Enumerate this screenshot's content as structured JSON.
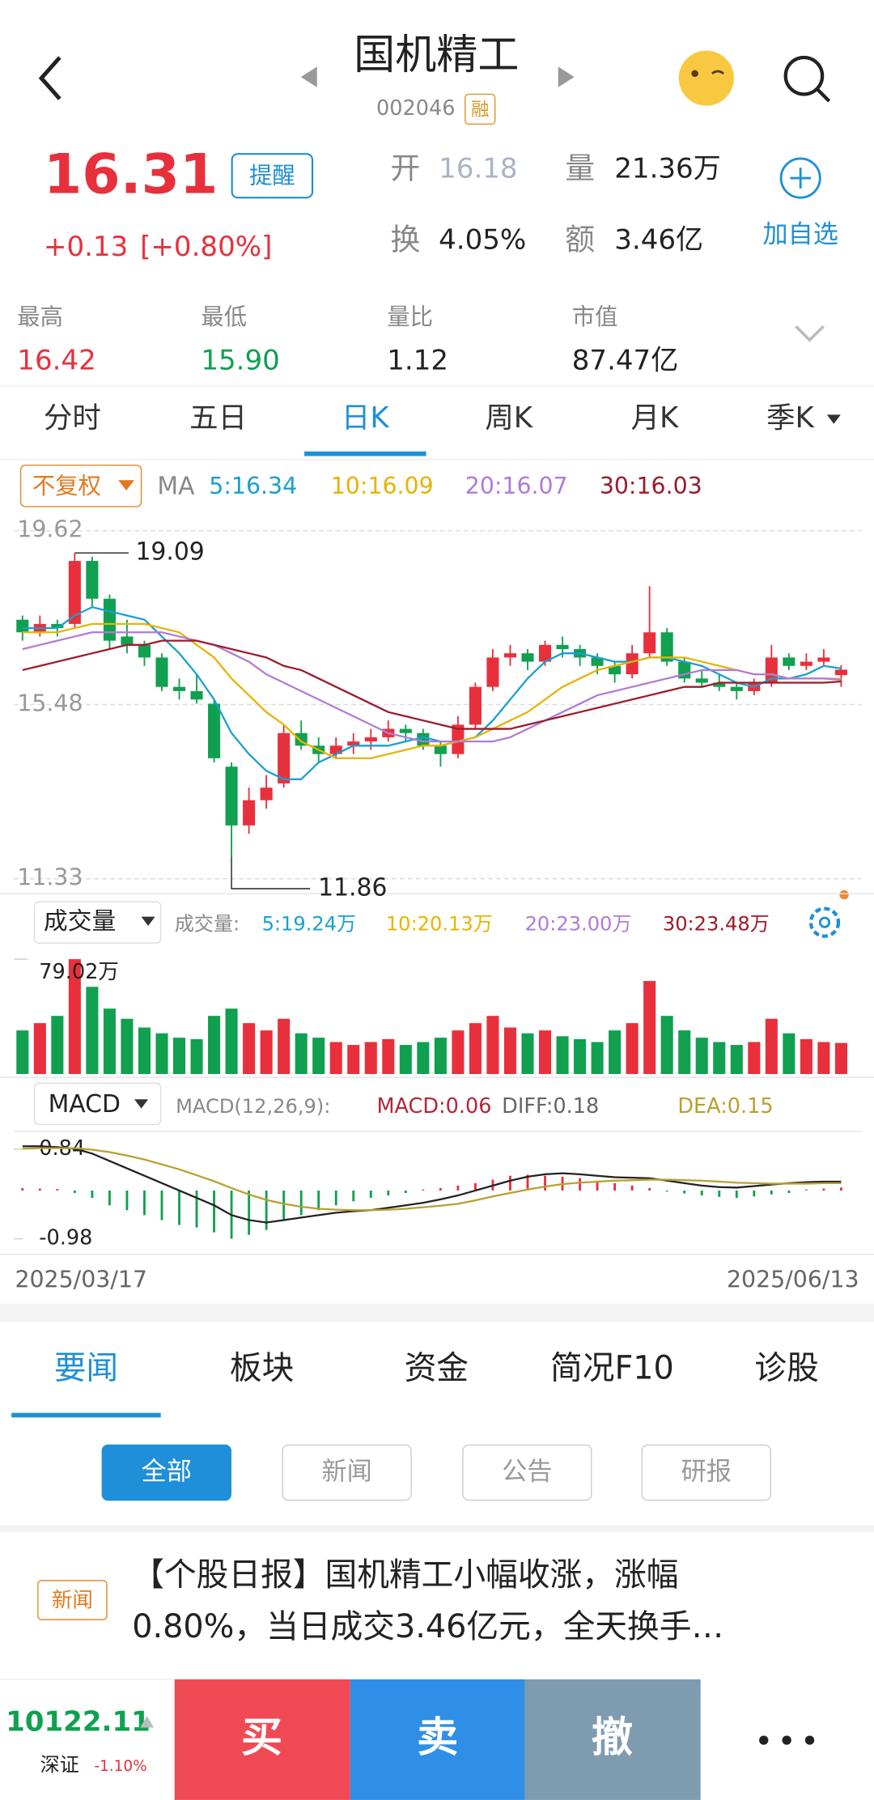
{
  "header": {
    "title": "国机精工",
    "code": "002046",
    "badge": "融"
  },
  "quote": {
    "price": "16.31",
    "change": "+0.13",
    "change_pct": "[+0.80%]",
    "alert": "提醒",
    "stats": [
      {
        "label": "开",
        "value": "16.18"
      },
      {
        "label": "量",
        "value": "21.36万"
      },
      {
        "label": "换",
        "value": "4.05%"
      },
      {
        "label": "额",
        "value": "3.46亿"
      }
    ],
    "watch": "加自选"
  },
  "summary": [
    {
      "label": "最高",
      "value": "16.42"
    },
    {
      "label": "最低",
      "value": "15.90"
    },
    {
      "label": "量比",
      "value": "1.12"
    },
    {
      "label": "市值",
      "value": "87.47亿"
    }
  ],
  "period_tabs": [
    "分时",
    "五日",
    "日K",
    "周K",
    "月K",
    "季K"
  ],
  "active_tab": 2,
  "chart": {
    "type": "candlestick",
    "adjust": "不复权",
    "ma_label": "MA",
    "up_color": "#e8303c",
    "down_color": "#10a050",
    "ylim": [
      11.33,
      19.62
    ],
    "yticks": [
      19.62,
      15.48,
      11.33
    ],
    "x_labels": [
      "2025/03/17",
      "2025/06/13"
    ],
    "candles": [
      [
        17.5,
        17.6,
        17.0,
        17.2
      ],
      [
        17.2,
        17.6,
        17.1,
        17.4
      ],
      [
        17.4,
        17.5,
        17.1,
        17.3
      ],
      [
        17.4,
        19.09,
        17.3,
        18.9
      ],
      [
        18.9,
        19.0,
        17.8,
        18.0
      ],
      [
        18.0,
        18.1,
        16.8,
        17.0
      ],
      [
        17.1,
        17.5,
        16.7,
        16.9
      ],
      [
        16.9,
        17.0,
        16.4,
        16.6
      ],
      [
        16.6,
        16.7,
        15.8,
        15.9
      ],
      [
        15.9,
        16.1,
        15.6,
        15.8
      ],
      [
        15.8,
        16.2,
        15.5,
        15.6
      ],
      [
        15.5,
        15.6,
        14.1,
        14.2
      ],
      [
        14.0,
        14.1,
        11.86,
        12.6
      ],
      [
        12.6,
        13.5,
        12.4,
        13.2
      ],
      [
        13.2,
        13.8,
        13.0,
        13.5
      ],
      [
        13.6,
        15.0,
        13.5,
        14.8
      ],
      [
        14.8,
        15.1,
        14.4,
        14.5
      ],
      [
        14.5,
        14.7,
        14.1,
        14.3
      ],
      [
        14.3,
        14.7,
        14.2,
        14.5
      ],
      [
        14.5,
        14.8,
        14.3,
        14.6
      ],
      [
        14.6,
        14.9,
        14.4,
        14.7
      ],
      [
        14.7,
        15.1,
        14.6,
        14.9
      ],
      [
        14.9,
        15.0,
        14.6,
        14.8
      ],
      [
        14.8,
        14.9,
        14.4,
        14.5
      ],
      [
        14.5,
        14.6,
        14.0,
        14.3
      ],
      [
        14.3,
        15.2,
        14.2,
        15.0
      ],
      [
        15.0,
        16.0,
        14.9,
        15.9
      ],
      [
        15.9,
        16.8,
        15.8,
        16.6
      ],
      [
        16.6,
        16.9,
        16.4,
        16.7
      ],
      [
        16.7,
        16.8,
        16.3,
        16.5
      ],
      [
        16.5,
        17.0,
        16.4,
        16.9
      ],
      [
        16.9,
        17.1,
        16.6,
        16.8
      ],
      [
        16.8,
        16.9,
        16.4,
        16.6
      ],
      [
        16.6,
        16.7,
        16.2,
        16.4
      ],
      [
        16.4,
        16.5,
        16.0,
        16.2
      ],
      [
        16.2,
        16.9,
        16.1,
        16.7
      ],
      [
        16.7,
        18.3,
        16.6,
        17.2
      ],
      [
        17.2,
        17.3,
        16.4,
        16.5
      ],
      [
        16.5,
        16.6,
        16.0,
        16.1
      ],
      [
        16.1,
        16.3,
        15.9,
        16.0
      ],
      [
        16.0,
        16.2,
        15.8,
        15.9
      ],
      [
        15.9,
        16.0,
        15.6,
        15.8
      ],
      [
        15.8,
        16.1,
        15.7,
        16.0
      ],
      [
        16.0,
        16.9,
        15.9,
        16.6
      ],
      [
        16.6,
        16.7,
        16.3,
        16.4
      ],
      [
        16.4,
        16.7,
        16.3,
        16.5
      ],
      [
        16.5,
        16.8,
        16.4,
        16.6
      ],
      [
        16.18,
        16.42,
        15.9,
        16.31
      ]
    ],
    "ma": [
      {
        "name": "5:16.34",
        "color": "#1a9fd0",
        "values": [
          17.3,
          17.3,
          17.3,
          17.6,
          17.8,
          17.7,
          17.6,
          17.5,
          17.1,
          16.7,
          16.2,
          15.6,
          14.8,
          14.3,
          13.9,
          13.7,
          13.7,
          14.1,
          14.3,
          14.5,
          14.5,
          14.5,
          14.6,
          14.7,
          14.6,
          14.6,
          14.7,
          15.1,
          15.6,
          16.1,
          16.5,
          16.7,
          16.7,
          16.6,
          16.5,
          16.5,
          16.6,
          16.6,
          16.5,
          16.4,
          16.2,
          16.0,
          15.9,
          16.1,
          16.1,
          16.2,
          16.4,
          16.34
        ]
      },
      {
        "name": "10:16.09",
        "color": "#e6b400",
        "values": [
          17.2,
          17.2,
          17.2,
          17.3,
          17.4,
          17.4,
          17.4,
          17.4,
          17.3,
          17.2,
          16.9,
          16.6,
          16.1,
          15.7,
          15.3,
          15.0,
          14.6,
          14.4,
          14.2,
          14.2,
          14.2,
          14.3,
          14.4,
          14.5,
          14.5,
          14.6,
          14.7,
          14.9,
          15.1,
          15.3,
          15.6,
          15.9,
          16.1,
          16.3,
          16.4,
          16.5,
          16.6,
          16.6,
          16.6,
          16.5,
          16.4,
          16.3,
          16.2,
          16.2,
          16.1,
          16.1,
          16.1,
          16.09
        ]
      },
      {
        "name": "20:16.07",
        "color": "#b07cd6",
        "values": [
          16.8,
          16.9,
          17.0,
          17.1,
          17.2,
          17.2,
          17.2,
          17.2,
          17.2,
          17.1,
          17.0,
          16.9,
          16.7,
          16.5,
          16.2,
          16.0,
          15.8,
          15.6,
          15.4,
          15.2,
          15.0,
          14.8,
          14.7,
          14.6,
          14.6,
          14.6,
          14.6,
          14.6,
          14.7,
          14.9,
          15.1,
          15.3,
          15.5,
          15.7,
          15.8,
          15.9,
          16.0,
          16.1,
          16.2,
          16.3,
          16.3,
          16.3,
          16.2,
          16.2,
          16.1,
          16.1,
          16.1,
          16.07
        ]
      },
      {
        "name": "30:16.03",
        "color": "#9b1c2c",
        "values": [
          16.3,
          16.4,
          16.5,
          16.6,
          16.7,
          16.8,
          16.9,
          16.9,
          17.0,
          17.0,
          17.0,
          16.9,
          16.8,
          16.7,
          16.6,
          16.4,
          16.3,
          16.1,
          15.9,
          15.7,
          15.5,
          15.3,
          15.2,
          15.1,
          15.0,
          14.9,
          14.9,
          14.9,
          14.9,
          15.0,
          15.1,
          15.2,
          15.3,
          15.4,
          15.5,
          15.6,
          15.7,
          15.8,
          15.9,
          15.9,
          16.0,
          16.0,
          16.0,
          16.0,
          16.0,
          16.0,
          16.0,
          16.03
        ]
      }
    ]
  },
  "volume": {
    "type": "bar",
    "title": "成交量",
    "legend_prefix": "成交量:",
    "legend": [
      {
        "name": "5:19.24万",
        "color": "#1a9fd0"
      },
      {
        "name": "10:20.13万",
        "color": "#e6b400"
      },
      {
        "name": "20:23.00万",
        "color": "#b07cd6"
      },
      {
        "name": "30:23.48万",
        "color": "#9b1c2c"
      }
    ],
    "ylim": [
      0,
      79.02
    ],
    "yticks": [
      {
        "value": 79.02,
        "label": "79.02万"
      }
    ],
    "values": [
      30,
      35,
      40,
      79.02,
      60,
      45,
      38,
      32,
      28,
      25,
      24,
      40,
      45,
      35,
      30,
      38,
      28,
      25,
      22,
      20,
      22,
      24,
      20,
      22,
      25,
      30,
      35,
      40,
      32,
      28,
      30,
      26,
      24,
      22,
      30,
      35,
      64,
      40,
      30,
      25,
      22,
      20,
      22,
      38,
      28,
      24,
      22,
      21.36
    ]
  },
  "macd": {
    "type": "macd",
    "title": "MACD",
    "params": "MACD(12,26,9):",
    "legend": [
      {
        "name": "MACD:0.06",
        "color": "#b0283a"
      },
      {
        "name": "DIFF:0.18",
        "color": "#666666"
      },
      {
        "name": "DEA:0.15",
        "color": "#b8a030"
      }
    ],
    "ylim": [
      -1.25,
      1.2
    ],
    "yticks": [
      0.84,
      -0.98
    ],
    "diff_color": "#222222",
    "dea_color": "#b8a030",
    "hist": [
      0.05,
      0.04,
      0.03,
      -0.05,
      -0.15,
      -0.3,
      -0.4,
      -0.5,
      -0.6,
      -0.7,
      -0.75,
      -0.85,
      -0.98,
      -0.9,
      -0.8,
      -0.6,
      -0.5,
      -0.4,
      -0.3,
      -0.22,
      -0.15,
      -0.1,
      -0.05,
      0.02,
      0.05,
      0.1,
      0.15,
      0.22,
      0.3,
      0.32,
      0.3,
      0.28,
      0.25,
      0.2,
      0.15,
      0.1,
      0.05,
      -0.02,
      -0.06,
      -0.1,
      -0.13,
      -0.15,
      -0.12,
      -0.08,
      -0.05,
      0.02,
      0.04,
      0.06
    ],
    "diff": [
      0.9,
      0.9,
      0.88,
      0.85,
      0.75,
      0.6,
      0.45,
      0.3,
      0.15,
      0,
      -0.15,
      -0.3,
      -0.5,
      -0.6,
      -0.65,
      -0.6,
      -0.55,
      -0.5,
      -0.45,
      -0.42,
      -0.4,
      -0.35,
      -0.3,
      -0.25,
      -0.18,
      -0.1,
      0,
      0.1,
      0.2,
      0.28,
      0.33,
      0.35,
      0.33,
      0.3,
      0.27,
      0.26,
      0.25,
      0.2,
      0.15,
      0.1,
      0.07,
      0.06,
      0.09,
      0.12,
      0.15,
      0.17,
      0.18,
      0.18
    ],
    "dea": [
      0.85,
      0.86,
      0.86,
      0.86,
      0.83,
      0.78,
      0.71,
      0.63,
      0.53,
      0.43,
      0.31,
      0.19,
      0.05,
      -0.08,
      -0.19,
      -0.27,
      -0.33,
      -0.37,
      -0.39,
      -0.4,
      -0.4,
      -0.39,
      -0.37,
      -0.34,
      -0.31,
      -0.27,
      -0.2,
      -0.12,
      -0.05,
      0.02,
      0.08,
      0.13,
      0.16,
      0.18,
      0.2,
      0.21,
      0.22,
      0.22,
      0.21,
      0.2,
      0.18,
      0.16,
      0.15,
      0.14,
      0.14,
      0.14,
      0.15,
      0.15
    ]
  },
  "news_tabs": [
    "要闻",
    "板块",
    "资金",
    "简况F10",
    "诊股"
  ],
  "filters": [
    "全部",
    "新闻",
    "公告",
    "研报"
  ],
  "news": {
    "tag": "新闻",
    "headline_lines": [
      "【个股日报】国机精工小幅收涨，涨幅",
      "0.80%，当日成交3.46亿元，全天换手…"
    ]
  },
  "bottom": {
    "index_value": "10122.11",
    "index_name": "深证",
    "index_change": "-1.10%",
    "buy": "买",
    "sell": "卖",
    "cancel": "撤"
  }
}
